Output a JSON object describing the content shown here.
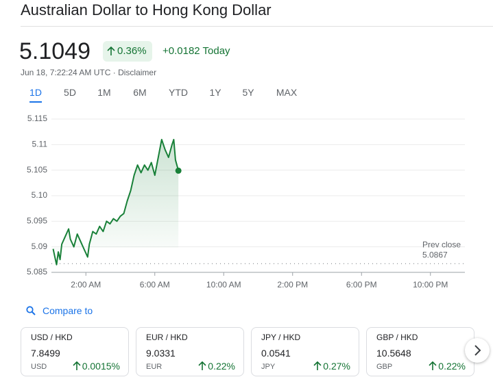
{
  "header": {
    "title": "Australian Dollar to Hong Kong Dollar",
    "price": "5.1049",
    "change_percent": "0.36%",
    "change_today": "+0.0182 Today",
    "timestamp": "Jun 18, 7:22:24 AM UTC · ",
    "disclaimer": "Disclaimer"
  },
  "tabs": {
    "items": [
      "1D",
      "5D",
      "1M",
      "6M",
      "YTD",
      "1Y",
      "5Y",
      "MAX"
    ],
    "selected": 0
  },
  "chart_data": {
    "type": "line",
    "color": "#188038",
    "x": [
      0.1,
      0.2,
      0.3,
      0.4,
      0.5,
      0.6,
      0.8,
      1.0,
      1.1,
      1.3,
      1.5,
      1.7,
      1.9,
      2.1,
      2.2,
      2.4,
      2.6,
      2.8,
      3.0,
      3.2,
      3.4,
      3.6,
      3.8,
      4.0,
      4.2,
      4.4,
      4.6,
      4.8,
      5.0,
      5.2,
      5.4,
      5.6,
      5.8,
      6.0,
      6.2,
      6.4,
      6.6,
      6.8,
      7.0,
      7.1,
      7.2,
      7.37
    ],
    "values": [
      5.0896,
      5.088,
      5.0865,
      5.089,
      5.0875,
      5.0905,
      5.092,
      5.0935,
      5.0915,
      5.09,
      5.0925,
      5.091,
      5.0895,
      5.088,
      5.0905,
      5.093,
      5.0925,
      5.094,
      5.093,
      5.095,
      5.0945,
      5.0955,
      5.095,
      5.096,
      5.0965,
      5.099,
      5.101,
      5.104,
      5.106,
      5.1045,
      5.106,
      5.105,
      5.1065,
      5.104,
      5.1075,
      5.111,
      5.109,
      5.1075,
      5.11,
      5.111,
      5.107,
      5.1049
    ],
    "xlim": [
      0,
      24
    ],
    "xticks": [
      {
        "value": 2,
        "label": "2:00 AM"
      },
      {
        "value": 6,
        "label": "6:00 AM"
      },
      {
        "value": 10,
        "label": "10:00 AM"
      },
      {
        "value": 14,
        "label": "2:00 PM"
      },
      {
        "value": 18,
        "label": "6:00 PM"
      },
      {
        "value": 22,
        "label": "10:00 PM"
      }
    ],
    "ylim": [
      5.085,
      5.115
    ],
    "yticks": [
      5.085,
      5.09,
      5.095,
      {
        "value": 5.1,
        "label": "5.10"
      },
      5.105,
      5.11,
      5.115
    ],
    "grid": true,
    "prev_close_label": "Prev close",
    "prev_close": 5.0867
  },
  "compare": {
    "label": "Compare to",
    "cards": [
      {
        "pair": "USD / HKD",
        "price": "7.8499",
        "currency": "USD",
        "change": "0.0015%"
      },
      {
        "pair": "EUR / HKD",
        "price": "9.0331",
        "currency": "EUR",
        "change": "0.22%"
      },
      {
        "pair": "JPY / HKD",
        "price": "0.0541",
        "currency": "JPY",
        "change": "0.27%"
      },
      {
        "pair": "GBP / HKD",
        "price": "10.5648",
        "currency": "GBP",
        "change": "0.22%"
      }
    ]
  }
}
